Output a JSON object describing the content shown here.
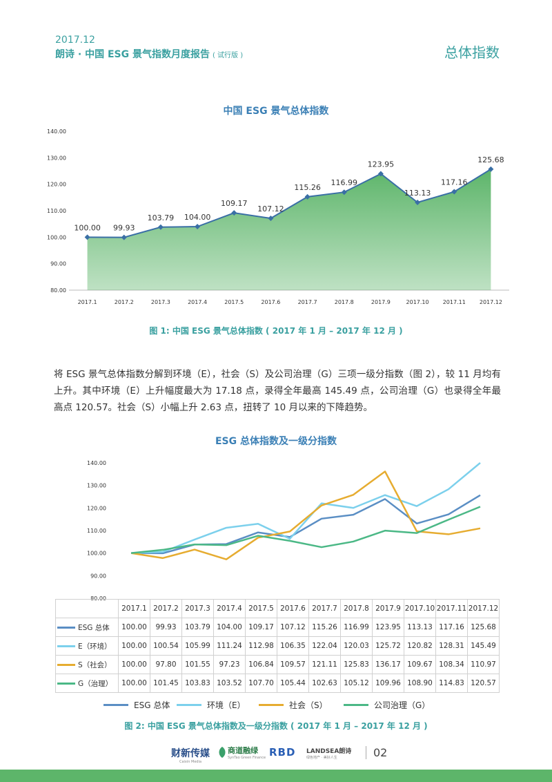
{
  "header": {
    "date": "2017.12",
    "title": "朗诗 · 中国 ESG 景气指数月度报告",
    "title_sub": "( 试行版 )",
    "section": "总体指数"
  },
  "chart1": {
    "title": "中国 ESG 景气总体指数",
    "caption": "图 1:  中国 ESG 景气总体指数 ( 2017 年 1 月 – 2017 年 12 月 )"
  },
  "paragraph": "将 ESG 景气总体指数分解到环境（E），社会（S）及公司治理（G）三项一级分指数（图 2），较 11 月均有上升。其中环境（E）上升幅度最大为 17.18 点，录得全年最高 145.49 点，公司治理（G）也录得全年最高点 120.57。社会（S）小幅上升 2.63 点，扭转了 10 月以来的下降趋势。",
  "chart2": {
    "title": "ESG 总体指数及一级分指数",
    "caption": "图 2:  中国 ESG 景气总体指数及一级分指数 ( 2017 年 1 月 – 2017 年 12 月 )"
  },
  "chart_data": [
    {
      "type": "area",
      "title": "中国 ESG 景气总体指数",
      "categories": [
        "2017.1",
        "2017.2",
        "2017.3",
        "2017.4",
        "2017.5",
        "2017.6",
        "2017.7",
        "2017.8",
        "2017.9",
        "2017.10",
        "2017.11",
        "2017.12"
      ],
      "values": [
        100.0,
        99.93,
        103.79,
        104.0,
        109.17,
        107.12,
        115.26,
        116.99,
        123.95,
        113.13,
        117.16,
        125.68
      ],
      "value_labels": [
        "100.00",
        "99.93",
        "103.79",
        "104.00",
        "109.17",
        "107.12",
        "115.26",
        "116.99",
        "123.95",
        "113.13",
        "117.16",
        "125.68"
      ],
      "ylim": [
        80,
        140
      ],
      "yticks": [
        "80.00",
        "90.00",
        "100.00",
        "110.00",
        "120.00",
        "130.00",
        "140.00"
      ],
      "color": "#5db56a",
      "line_color": "#3a6fa5",
      "grid": false
    },
    {
      "type": "line",
      "title": "ESG 总体指数及一级分指数",
      "categories": [
        "2017.1",
        "2017.2",
        "2017.3",
        "2017.4",
        "2017.5",
        "2017.6",
        "2017.7",
        "2017.8",
        "2017.9",
        "2017.10",
        "2017.11",
        "2017.12"
      ],
      "ylim": [
        80,
        140
      ],
      "yticks": [
        "80.00",
        "90.00",
        "100.00",
        "110.00",
        "120.00",
        "130.00",
        "140.00"
      ],
      "legend_position": "bottom",
      "series": [
        {
          "name": "ESG 总体",
          "legend": "ESG 总体",
          "color": "#5a8ec4",
          "values": [
            100.0,
            99.93,
            103.79,
            104.0,
            109.17,
            107.12,
            115.26,
            116.99,
            123.95,
            113.13,
            117.16,
            125.68
          ],
          "labels": [
            "100.00",
            "99.93",
            "103.79",
            "104.00",
            "109.17",
            "107.12",
            "115.26",
            "116.99",
            "123.95",
            "113.13",
            "117.16",
            "125.68"
          ]
        },
        {
          "name": "E（环境）",
          "legend": "环境（E）",
          "color": "#7cd0ec",
          "values": [
            100.0,
            100.54,
            105.99,
            111.24,
            112.98,
            106.35,
            122.04,
            120.03,
            125.72,
            120.82,
            128.31,
            145.49
          ],
          "labels": [
            "100.00",
            "100.54",
            "105.99",
            "111.24",
            "112.98",
            "106.35",
            "122.04",
            "120.03",
            "125.72",
            "120.82",
            "128.31",
            "145.49"
          ]
        },
        {
          "name": "S（社会）",
          "legend": "社会（S）",
          "color": "#e6ac30",
          "values": [
            100.0,
            97.8,
            101.55,
            97.23,
            106.84,
            109.57,
            121.11,
            125.83,
            136.17,
            109.67,
            108.34,
            110.97
          ],
          "labels": [
            "100.00",
            "97.80",
            "101.55",
            "97.23",
            "106.84",
            "109.57",
            "121.11",
            "125.83",
            "136.17",
            "109.67",
            "108.34",
            "110.97"
          ]
        },
        {
          "name": "G（治理）",
          "legend": "公司治理（G）",
          "color": "#4bb886",
          "values": [
            100.0,
            101.45,
            103.83,
            103.52,
            107.7,
            105.44,
            102.63,
            105.12,
            109.96,
            108.9,
            114.83,
            120.57
          ],
          "labels": [
            "100.00",
            "101.45",
            "103.83",
            "103.52",
            "107.70",
            "105.44",
            "102.63",
            "105.12",
            "109.96",
            "108.90",
            "114.83",
            "120.57"
          ]
        }
      ]
    }
  ],
  "footer": {
    "logos": [
      "财新传媒",
      "Caixin Media",
      "商道融绿",
      "SynTao Green Finance",
      "RBD",
      "LANDSEA朗诗",
      "绿色地产 · 美好人生"
    ],
    "page": "02"
  },
  "colors": {
    "accent": "#3aa0a0",
    "chart_title": "#3a7fb5",
    "bar": "#5db56a"
  }
}
